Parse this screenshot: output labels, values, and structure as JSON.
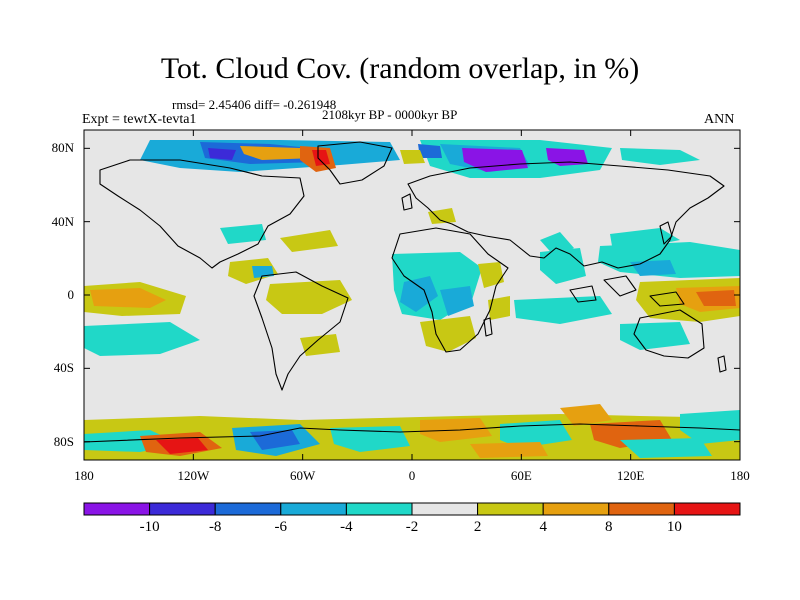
{
  "header": {
    "title": "Tot. Cloud Cov. (random overlap, in %)",
    "stats": "rmsd= 2.45406 diff= -0.261948",
    "period": "2108kyr BP - 0000kyr BP",
    "experiment": "Expt = tewtX-tevta1",
    "season": "ANN"
  },
  "axes": {
    "y_ticks": [
      {
        "label": "80N",
        "lat": 80
      },
      {
        "label": "40N",
        "lat": 40
      },
      {
        "label": "0",
        "lat": 0
      },
      {
        "label": "40S",
        "lat": -40
      },
      {
        "label": "80S",
        "lat": -80
      }
    ],
    "x_ticks": [
      {
        "label": "180",
        "lon": -180
      },
      {
        "label": "120W",
        "lon": -120
      },
      {
        "label": "60W",
        "lon": -60
      },
      {
        "label": "0",
        "lon": 0
      },
      {
        "label": "60E",
        "lon": 60
      },
      {
        "label": "120E",
        "lon": 120
      },
      {
        "label": "180",
        "lon": 180
      }
    ]
  },
  "colorbar": {
    "labels": [
      "-10",
      "-8",
      "-6",
      "-4",
      "-2",
      "2",
      "4",
      "8",
      "10"
    ],
    "colors": [
      "#8a14e6",
      "#3c2ad8",
      "#1c6ad8",
      "#19aad8",
      "#20d8c8",
      "#e6e6e6",
      "#c8c814",
      "#e6a010",
      "#e06410",
      "#e61414"
    ]
  },
  "map": {
    "background_color": "#e6e6e6",
    "coastline_color": "#000000"
  }
}
